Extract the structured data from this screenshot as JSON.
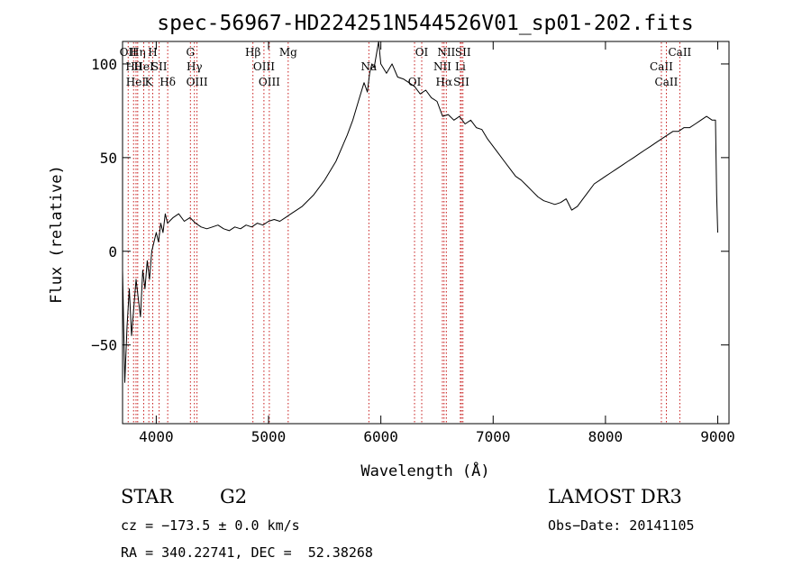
{
  "chart_data": {
    "type": "line",
    "title": "spec-56967-HD224251N544526V01_sp01-202.fits",
    "xlabel": "Wavelength (Å)",
    "ylabel": "Flux (relative)",
    "xlim": [
      3700,
      9100
    ],
    "ylim": [
      -92,
      112
    ],
    "xticks": [
      4000,
      5000,
      6000,
      7000,
      8000,
      9000
    ],
    "yticks": [
      -50,
      0,
      50,
      100
    ],
    "series": [
      {
        "x": [
          3700,
          3720,
          3740,
          3760,
          3780,
          3800,
          3820,
          3840,
          3860,
          3880,
          3900,
          3920,
          3940,
          3960,
          3980,
          4000,
          4020,
          4040,
          4060,
          4080,
          4100,
          4150,
          4200,
          4250,
          4300,
          4350,
          4400,
          4450,
          4500,
          4550,
          4600,
          4650,
          4700,
          4750,
          4800,
          4850,
          4900,
          4950,
          5000,
          5050,
          5100,
          5150,
          5200,
          5250,
          5300,
          5400,
          5500,
          5600,
          5700,
          5750,
          5800,
          5850,
          5880,
          5900,
          5920,
          5940,
          5960,
          5980,
          6000,
          6050,
          6100,
          6150,
          6200,
          6250,
          6300,
          6350,
          6400,
          6450,
          6500,
          6550,
          6600,
          6650,
          6700,
          6750,
          6800,
          6850,
          6900,
          6950,
          7000,
          7050,
          7100,
          7150,
          7200,
          7250,
          7300,
          7350,
          7400,
          7450,
          7500,
          7550,
          7600,
          7650,
          7700,
          7750,
          7800,
          7850,
          7900,
          7950,
          8000,
          8050,
          8100,
          8150,
          8200,
          8250,
          8300,
          8350,
          8400,
          8450,
          8500,
          8550,
          8600,
          8650,
          8700,
          8750,
          8800,
          8850,
          8900,
          8950,
          8980,
          8990,
          9000
        ],
        "y": [
          -10,
          -70,
          -40,
          -20,
          -45,
          -30,
          -15,
          -25,
          -35,
          -10,
          -20,
          -5,
          -15,
          0,
          5,
          10,
          5,
          15,
          10,
          20,
          15,
          18,
          20,
          16,
          18,
          15,
          13,
          12,
          13,
          14,
          12,
          11,
          13,
          12,
          14,
          13,
          15,
          14,
          16,
          17,
          16,
          18,
          20,
          22,
          24,
          30,
          38,
          48,
          62,
          70,
          80,
          90,
          85,
          95,
          100,
          98,
          105,
          112,
          100,
          95,
          100,
          93,
          92,
          90,
          88,
          84,
          86,
          82,
          80,
          72,
          73,
          70,
          72,
          68,
          70,
          66,
          65,
          60,
          56,
          52,
          48,
          44,
          40,
          38,
          35,
          32,
          29,
          27,
          26,
          25,
          26,
          28,
          22,
          24,
          28,
          32,
          36,
          38,
          40,
          42,
          44,
          46,
          48,
          50,
          52,
          54,
          56,
          58,
          60,
          62,
          64,
          64,
          66,
          66,
          68,
          70,
          72,
          70,
          70,
          30,
          10
        ]
      }
    ],
    "lines": [
      {
        "wl": 3750,
        "label": "OII"
      },
      {
        "wl": 3798,
        "label": "Hθ"
      },
      {
        "wl": 3820,
        "label": "HeI"
      },
      {
        "wl": 3835,
        "label": "Hη"
      },
      {
        "wl": 3889,
        "label": "HeI"
      },
      {
        "wl": 3934,
        "label": "K"
      },
      {
        "wl": 3969,
        "label": "H"
      },
      {
        "wl": 4026,
        "label": "SII"
      },
      {
        "wl": 4102,
        "label": "Hδ"
      },
      {
        "wl": 4304,
        "label": "G"
      },
      {
        "wl": 4340,
        "label": "Hγ"
      },
      {
        "wl": 4363,
        "label": "OIII"
      },
      {
        "wl": 4861,
        "label": "Hβ"
      },
      {
        "wl": 4959,
        "label": "OIII"
      },
      {
        "wl": 5007,
        "label": "OIII"
      },
      {
        "wl": 5175,
        "label": "Mg"
      },
      {
        "wl": 5893,
        "label": "Na"
      },
      {
        "wl": 6300,
        "label": "OI"
      },
      {
        "wl": 6364,
        "label": "OI"
      },
      {
        "wl": 6548,
        "label": "NII"
      },
      {
        "wl": 6563,
        "label": "Hα"
      },
      {
        "wl": 6583,
        "label": "NII"
      },
      {
        "wl": 6708,
        "label": "Li"
      },
      {
        "wl": 6717,
        "label": "SII"
      },
      {
        "wl": 6731,
        "label": "SII"
      },
      {
        "wl": 8498,
        "label": "CaII"
      },
      {
        "wl": 8542,
        "label": "CaII"
      },
      {
        "wl": 8662,
        "label": "CaII"
      }
    ]
  },
  "info": {
    "class": "STAR",
    "subclass": "G2",
    "survey": "LAMOST DR3",
    "cz": "cz = −173.5 ± 0.0 km/s",
    "obs_date": "Obs−Date: 20141105",
    "coords": "RA = 340.22741, DEC =  52.38268"
  }
}
